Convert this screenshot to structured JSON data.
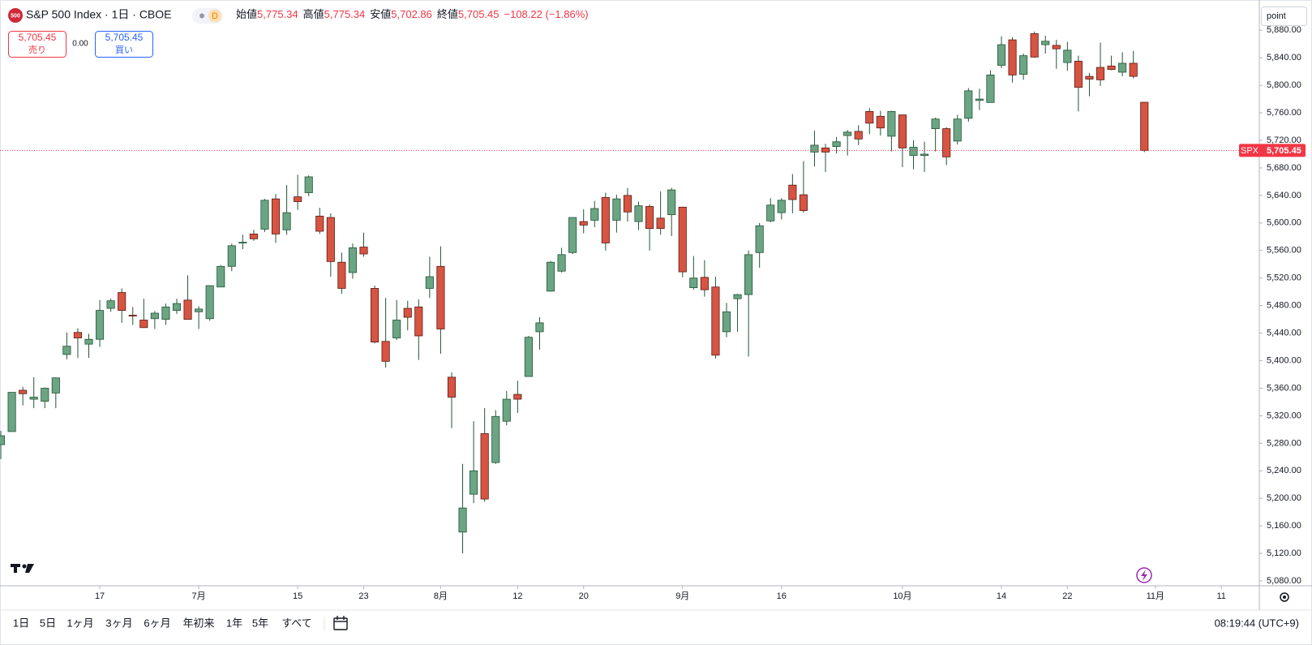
{
  "header": {
    "symbol_badge": "500",
    "title": "S&P 500 Index · 1日 · CBOE",
    "badge": "D",
    "ohlc": [
      {
        "label": "始値",
        "value": "5,775.34"
      },
      {
        "label": "高値",
        "value": "5,775.34"
      },
      {
        "label": "安値",
        "value": "5,702.86"
      },
      {
        "label": "終値",
        "value": "5,705.45"
      }
    ],
    "change": "−108.22 (−1.86%)"
  },
  "trade": {
    "sell_price": "5,705.45",
    "sell_label": "売り",
    "spread": "0.00",
    "buy_price": "5,705.45",
    "buy_label": "買い"
  },
  "unit_button": "point",
  "chart_data": {
    "type": "candlestick",
    "categories": [
      null,
      null,
      null,
      null,
      null,
      null,
      null,
      null,
      null,
      "17",
      null,
      null,
      null,
      null,
      null,
      null,
      null,
      null,
      "7月",
      null,
      null,
      null,
      null,
      null,
      null,
      null,
      null,
      "15",
      null,
      null,
      null,
      null,
      null,
      "23",
      null,
      null,
      null,
      null,
      null,
      null,
      "8月",
      null,
      null,
      null,
      null,
      null,
      null,
      "12",
      null,
      null,
      null,
      null,
      null,
      "20",
      null,
      null,
      null,
      null,
      null,
      null,
      null,
      null,
      "9月",
      null,
      null,
      null,
      null,
      null,
      null,
      null,
      null,
      "16",
      null,
      null,
      null,
      null,
      null,
      null,
      null,
      null,
      null,
      null,
      "10月",
      null,
      null,
      null,
      null,
      null,
      null,
      null,
      null,
      "14",
      null,
      null,
      null,
      null,
      null,
      "22",
      null,
      null,
      null,
      null,
      null,
      null,
      null,
      "11月",
      null,
      null,
      null,
      null,
      null,
      "11",
      null,
      null,
      null
    ],
    "open": [
      5278,
      5297,
      5357,
      5344,
      5341,
      5353,
      5409,
      5441,
      5424,
      5431,
      5476,
      5499,
      5466,
      5459,
      5461,
      5460,
      5473,
      5488,
      5471,
      5461,
      5507,
      5537,
      5572,
      5584,
      5591,
      5635,
      5590,
      5638,
      5644,
      5610,
      5608,
      5543,
      5528,
      5565,
      5505,
      5428,
      5433,
      5476,
      5478,
      5505,
      5537,
      5376,
      5151,
      5206,
      5294,
      5252,
      5312,
      5351,
      5377,
      5442,
      5501,
      5530,
      5557,
      5602,
      5604,
      5637,
      5604,
      5640,
      5602,
      5624,
      5607,
      5612,
      5623,
      5506,
      5521,
      5507,
      5442,
      5490,
      5496,
      5557,
      5603,
      5615,
      5655,
      5641,
      5703,
      5709,
      5711,
      5727,
      5733,
      5762,
      5755,
      5726,
      5757,
      5698,
      5698,
      5737,
      5737,
      5719,
      5752,
      5778,
      5775,
      5829,
      5866,
      5816,
      5875,
      5859,
      5858,
      5833,
      5835,
      5813,
      5826,
      5828,
      5819,
      5832,
      5775.34,
      null,
      null,
      null,
      null,
      null,
      null,
      null,
      null,
      null,
      null
    ],
    "high": [
      5298,
      5354,
      5362,
      5376,
      5361,
      5376,
      5441,
      5447,
      5439,
      5488,
      5490,
      5505,
      5478,
      5490,
      5472,
      5483,
      5490,
      5524,
      5479,
      5509,
      5539,
      5570,
      5583,
      5590,
      5635,
      5642,
      5655,
      5670,
      5669,
      5622,
      5614,
      5557,
      5570,
      5586,
      5509,
      5491,
      5488,
      5487,
      5489,
      5551,
      5566,
      5383,
      5250,
      5312,
      5331,
      5328,
      5356,
      5371,
      5436,
      5463,
      5545,
      5564,
      5608,
      5620,
      5632,
      5644,
      5641,
      5651,
      5631,
      5627,
      5646,
      5651,
      5623,
      5552,
      5546,
      5522,
      5484,
      5497,
      5560,
      5600,
      5636,
      5636,
      5671,
      5690,
      5734,
      5715,
      5725,
      5735,
      5742,
      5767,
      5763,
      5763,
      5757,
      5720,
      5718,
      5753,
      5739,
      5757,
      5796,
      5795,
      5822,
      5871,
      5870,
      5846,
      5878,
      5872,
      5866,
      5863,
      5843,
      5818,
      5862,
      5843,
      5848,
      5850,
      5775.34,
      null,
      null,
      null,
      null,
      null,
      null,
      null,
      null,
      null,
      null
    ],
    "low": [
      5257,
      5297,
      5335,
      5331,
      5331,
      5331,
      5402,
      5404,
      5404,
      5420,
      5471,
      5455,
      5452,
      5448,
      5446,
      5452,
      5468,
      5460,
      5446,
      5458,
      5507,
      5530,
      5562,
      5574,
      5587,
      5571,
      5583,
      5619,
      5639,
      5584,
      5522,
      5497,
      5519,
      5551,
      5425,
      5390,
      5430,
      5444,
      5401,
      5491,
      5410,
      5302,
      5120,
      5193,
      5195,
      5250,
      5306,
      5324,
      5377,
      5416,
      5500,
      5528,
      5555,
      5585,
      5594,
      5560,
      5586,
      5602,
      5590,
      5560,
      5583,
      5581,
      5521,
      5503,
      5493,
      5403,
      5434,
      5442,
      5406,
      5535,
      5601,
      5605,
      5614,
      5615,
      5682,
      5674,
      5701,
      5698,
      5713,
      5729,
      5727,
      5704,
      5681,
      5678,
      5674,
      5704,
      5684,
      5714,
      5747,
      5764,
      5775,
      5825,
      5804,
      5808,
      5840,
      5846,
      5824,
      5821,
      5762,
      5784,
      5799,
      5822,
      5813,
      5810,
      5702.86,
      null,
      null,
      null,
      null,
      null,
      null,
      null,
      null,
      null,
      null
    ],
    "close": [
      5291,
      5354,
      5352,
      5347,
      5360,
      5375,
      5421,
      5433,
      5431,
      5473,
      5487,
      5473,
      5465,
      5448,
      5469,
      5478,
      5483,
      5460,
      5475,
      5509,
      5537,
      5567,
      5572,
      5577,
      5633,
      5584,
      5615,
      5631,
      5667,
      5588,
      5544,
      5505,
      5564,
      5555,
      5427,
      5399,
      5459,
      5463,
      5436,
      5522,
      5446,
      5347,
      5186,
      5240,
      5199,
      5319,
      5344,
      5344,
      5434,
      5455,
      5543,
      5554,
      5608,
      5597,
      5621,
      5571,
      5635,
      5616,
      5625,
      5592,
      5592,
      5648,
      5529,
      5520,
      5503,
      5408,
      5471,
      5496,
      5554,
      5596,
      5626,
      5633,
      5634,
      5618,
      5713,
      5703,
      5718,
      5732,
      5722,
      5745,
      5738,
      5762,
      5709,
      5710,
      5700,
      5751,
      5696,
      5751,
      5792,
      5780,
      5815,
      5859,
      5815,
      5843,
      5841,
      5864,
      5853,
      5851,
      5797,
      5809,
      5808,
      5823,
      5832,
      5813,
      5705.45,
      null,
      null,
      null,
      null,
      null,
      null,
      null,
      null,
      null,
      null
    ],
    "up_color": "#6ba583",
    "down_color": "#d75442",
    "border_color": "#225437",
    "ylim": [
      5073,
      5918
    ],
    "yticks": [
      {
        "value": 5080,
        "label": "5,080.00"
      },
      {
        "value": 5120,
        "label": "5,120.00"
      },
      {
        "value": 5160,
        "label": "5,160.00"
      },
      {
        "value": 5200,
        "label": "5,200.00"
      },
      {
        "value": 5240,
        "label": "5,240.00"
      },
      {
        "value": 5280,
        "label": "5,280.00"
      },
      {
        "value": 5320,
        "label": "5,320.00"
      },
      {
        "value": 5360,
        "label": "5,360.00"
      },
      {
        "value": 5400,
        "label": "5,400.00"
      },
      {
        "value": 5440,
        "label": "5,440.00"
      },
      {
        "value": 5480,
        "label": "5,480.00"
      },
      {
        "value": 5520,
        "label": "5,520.00"
      },
      {
        "value": 5560,
        "label": "5,560.00"
      },
      {
        "value": 5600,
        "label": "5,600.00"
      },
      {
        "value": 5640,
        "label": "5,640.00"
      },
      {
        "value": 5680,
        "label": "5,680.00"
      },
      {
        "value": 5720,
        "label": "5,720.00"
      },
      {
        "value": 5760,
        "label": "5,760.00"
      },
      {
        "value": 5800,
        "label": "5,800.00"
      },
      {
        "value": 5840,
        "label": "5,840.00"
      },
      {
        "value": 5880,
        "label": "5,880.00"
      }
    ],
    "grid": false,
    "last_price": {
      "symbol": "SPX",
      "value": 5705.45,
      "label": "5,705.45",
      "color": "#f23645"
    }
  },
  "toolbar": {
    "ranges": [
      "1日",
      "5日",
      "1ヶ月",
      "3ヶ月",
      "6ヶ月",
      "年初来",
      "1年",
      "5年",
      "すべて"
    ],
    "clock": "08:19:44 (UTC+9)"
  }
}
